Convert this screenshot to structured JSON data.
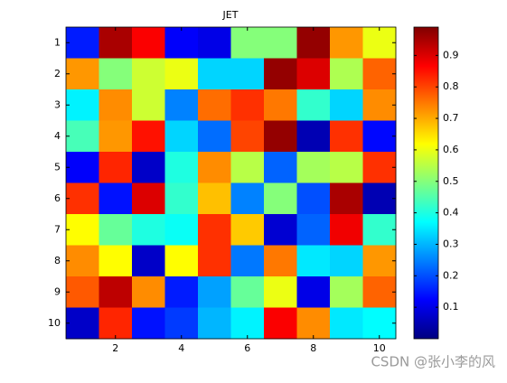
{
  "chart_data": {
    "type": "heatmap",
    "title": "JET",
    "colormap": "jet",
    "reverse_y": true,
    "z": [
      [
        0.15,
        0.95,
        0.87,
        0.12,
        0.1,
        0.5,
        0.5,
        0.97,
        0.72,
        0.6
      ],
      [
        0.72,
        0.5,
        0.57,
        0.6,
        0.33,
        0.33,
        0.97,
        0.9,
        0.54,
        0.77
      ],
      [
        0.36,
        0.73,
        0.57,
        0.25,
        0.76,
        0.82,
        0.75,
        0.42,
        0.33,
        0.73
      ],
      [
        0.44,
        0.72,
        0.85,
        0.33,
        0.23,
        0.8,
        0.97,
        0.05,
        0.82,
        0.13
      ],
      [
        0.12,
        0.83,
        0.07,
        0.4,
        0.73,
        0.55,
        0.22,
        0.53,
        0.55,
        0.82
      ],
      [
        0.82,
        0.14,
        0.9,
        0.42,
        0.68,
        0.25,
        0.5,
        0.2,
        0.95,
        0.05
      ],
      [
        0.62,
        0.47,
        0.4,
        0.38,
        0.82,
        0.67,
        0.08,
        0.22,
        0.88,
        0.42
      ],
      [
        0.73,
        0.62,
        0.07,
        0.62,
        0.82,
        0.24,
        0.75,
        0.35,
        0.33,
        0.72
      ],
      [
        0.78,
        0.93,
        0.73,
        0.15,
        0.28,
        0.47,
        0.6,
        0.1,
        0.53,
        0.77
      ],
      [
        0.07,
        0.83,
        0.14,
        0.18,
        0.3,
        0.36,
        0.87,
        0.73,
        0.35,
        0.37
      ]
    ],
    "xlim": [
      0.5,
      10.5
    ],
    "xticks": [
      2,
      4,
      6,
      8,
      10
    ],
    "ylim": [
      0.5,
      10.5
    ],
    "yticks": [
      1,
      2,
      3,
      4,
      5,
      6,
      7,
      8,
      9,
      10
    ],
    "clim": [
      0,
      0.99
    ],
    "cticks": [
      0.1,
      0.2,
      0.3,
      0.4,
      0.5,
      0.6,
      0.7,
      0.8,
      0.9
    ]
  },
  "watermark": "CSDN @张小李的风"
}
